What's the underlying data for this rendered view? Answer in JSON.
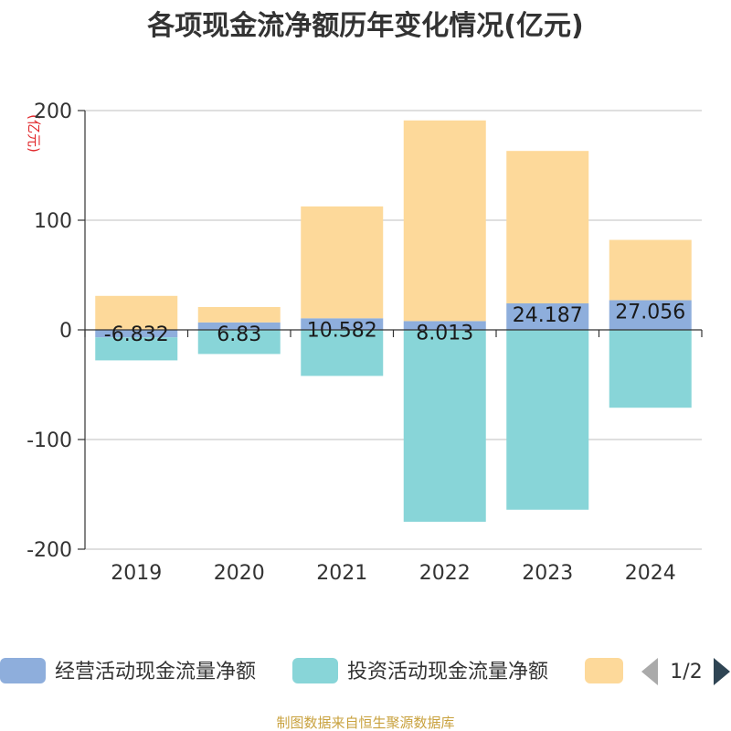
{
  "chart_data": {
    "type": "bar",
    "title": "各项现金流净额历年变化情况(亿元)",
    "unit_label": "(亿元)",
    "categories": [
      "2019",
      "2020",
      "2021",
      "2022",
      "2023",
      "2024"
    ],
    "stacked": true,
    "ylim": [
      -200,
      200
    ],
    "yticks": [
      200,
      100,
      0,
      -100,
      -200
    ],
    "grid": true,
    "legend_position": "bottom",
    "series": [
      {
        "name": "经营活动现金流量净额",
        "color": "#8eaedc",
        "values": [
          -6.832,
          6.83,
          10.582,
          8.013,
          24.187,
          27.056
        ],
        "labels": [
          "-6.832",
          "6.83",
          "10.582",
          "8.013",
          "24.187",
          "27.056"
        ]
      },
      {
        "name": "投资活动现金流量净额",
        "color": "#88d5d8",
        "values": [
          -21,
          -22,
          -42,
          -175,
          -164,
          -71
        ]
      },
      {
        "name": "",
        "color": "#fdd99a",
        "values": [
          31,
          14,
          102,
          183,
          139,
          55
        ]
      }
    ]
  },
  "legend": {
    "page": "1/2"
  },
  "source": "制图数据来自恒生聚源数据库"
}
